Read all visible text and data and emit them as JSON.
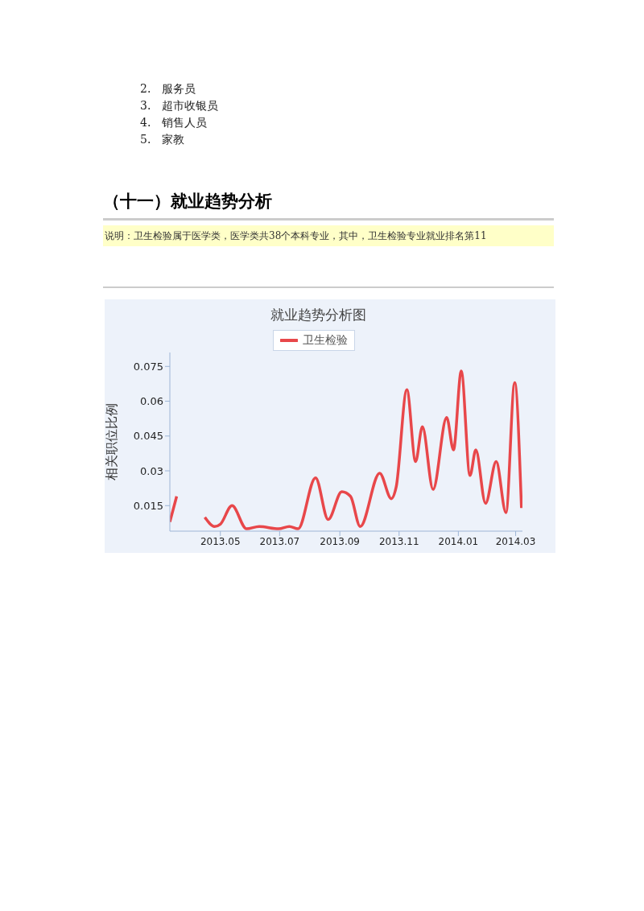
{
  "chart_data": {
    "type": "line",
    "title": "就业趋势分析图",
    "ylabel": "相关职位比例",
    "annotations": [
      "2.　服务员",
      "3.　超市收银员",
      "4.　销售人员",
      "5.　家教",
      "（十一）就业趋势分析",
      "说明：卫生检验属于医学类，医学类共38个本科专业，其中，卫生检验专业就业排名第11"
    ],
    "x": [
      "2013-03-10",
      "2013-03-17",
      "2013-03-25",
      "2013-04-05",
      "2013-04-15",
      "2013-04-25",
      "2013-05-01",
      "2013-05-13",
      "2013-05-28",
      "2013-06-10",
      "2013-06-30",
      "2013-07-11",
      "2013-07-20",
      "2013-08-07",
      "2013-08-20",
      "2013-09-03",
      "2013-09-12",
      "2013-09-22",
      "2013-10-12",
      "2013-10-24",
      "2013-10-29",
      "2013-11-09",
      "2013-11-18",
      "2013-11-25",
      "2013-12-06",
      "2013-12-20",
      "2013-12-27",
      "2014-01-04",
      "2014-01-13",
      "2014-01-19",
      "2014-01-29",
      "2014-02-09",
      "2014-02-19",
      "2014-02-28",
      "2014-03-07"
    ],
    "series": [
      {
        "name": "卫生检验",
        "color": "#e8474a",
        "values": [
          0.008,
          0.019,
          null,
          null,
          0.01,
          0.006,
          0.007,
          0.015,
          0.005,
          0.006,
          0.005,
          0.006,
          0.005,
          0.027,
          0.009,
          0.021,
          0.019,
          0.006,
          0.029,
          0.018,
          0.023,
          0.065,
          0.034,
          0.049,
          0.022,
          0.053,
          0.039,
          0.073,
          0.028,
          0.039,
          0.016,
          0.034,
          0.012,
          0.068,
          0.014
        ]
      }
    ],
    "xlim": [
      "2013-03-10",
      "2014-03-08"
    ],
    "xticks": [
      {
        "value": "2013-05-01",
        "label": "2013.05"
      },
      {
        "value": "2013-07-01",
        "label": "2013.07"
      },
      {
        "value": "2013-09-01",
        "label": "2013.09"
      },
      {
        "value": "2013-11-01",
        "label": "2013.11"
      },
      {
        "value": "2014-01-01",
        "label": "2014.01"
      },
      {
        "value": "2014-03-01",
        "label": "2014.03"
      }
    ],
    "ylim": [
      0.004,
      0.081
    ],
    "yticks": [
      0.015,
      0.03,
      0.045,
      0.06,
      0.075
    ],
    "legend": "top"
  }
}
